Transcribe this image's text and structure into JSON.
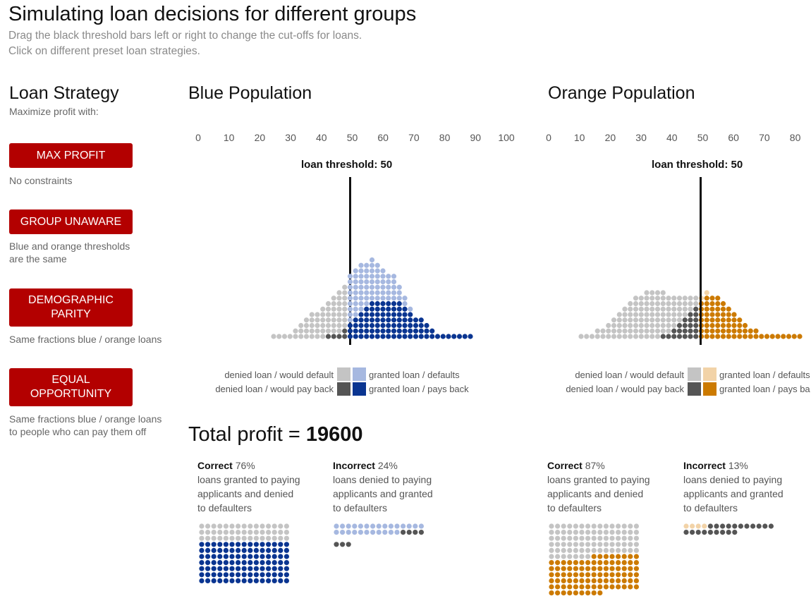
{
  "header": {
    "title": "Simulating loan decisions for different groups",
    "subtitle_1": "Drag the black threshold bars left or right to change the cut-offs for loans.",
    "subtitle_2": "Click on different preset loan strategies."
  },
  "strategy": {
    "title": "Loan Strategy",
    "subtitle": "Maximize profit with:",
    "buttons": [
      {
        "label_1": "MAX PROFIT",
        "label_2": "",
        "desc_1": "No constraints",
        "desc_2": ""
      },
      {
        "label_1": "GROUP UNAWARE",
        "label_2": "",
        "desc_1": "Blue and orange thresholds",
        "desc_2": "are the same"
      },
      {
        "label_1": "DEMOGRAPHIC",
        "label_2": "PARITY",
        "desc_1": "Same fractions blue / orange loans",
        "desc_2": ""
      },
      {
        "label_1": "EQUAL",
        "label_2": "OPPORTUNITY",
        "desc_1": "Same fractions blue / orange loans",
        "desc_2": "to people who can pay them off"
      }
    ]
  },
  "colors": {
    "accent": "#b30000",
    "denied_default": "#c4c4c4",
    "denied_payback": "#555555",
    "blue_granted_default": "#a6b8e0",
    "blue_granted_payback": "#0a3591",
    "orange_granted_default": "#f2d3a8",
    "orange_granted_payback": "#cc7a00"
  },
  "blue": {
    "title": "Blue Population",
    "ticks": [
      "0",
      "10",
      "20",
      "30",
      "40",
      "50",
      "60",
      "70",
      "80",
      "90",
      "100"
    ],
    "threshold_text": "loan threshold: 50",
    "threshold_value": 50,
    "legend": {
      "denied_default": "denied loan / would default",
      "denied_payback": "denied loan / would pay back",
      "granted_default": "granted loan / defaults",
      "granted_payback": "granted loan / pays back"
    },
    "correct_label": "Correct",
    "correct_pct": "76%",
    "correct_desc_1": "loans granted to paying",
    "correct_desc_2": "applicants and denied",
    "correct_desc_3": "to defaulters",
    "incorrect_label": "Incorrect",
    "incorrect_pct": "24%",
    "incorrect_desc_1": "loans denied to paying",
    "incorrect_desc_2": "applicants and granted",
    "incorrect_desc_3": "to defaulters"
  },
  "orange": {
    "title": "Orange Population",
    "ticks": [
      "0",
      "10",
      "20",
      "30",
      "40",
      "50",
      "60",
      "70",
      "80"
    ],
    "threshold_text": "loan threshold: 50",
    "threshold_value": 50,
    "legend": {
      "denied_default": "denied loan / would default",
      "denied_payback": "denied loan / would pay back",
      "granted_default": "granted loan / defaults",
      "granted_payback": "granted loan / pays ba"
    },
    "correct_label": "Correct",
    "correct_pct": "87%",
    "correct_desc_1": "loans granted to paying",
    "correct_desc_2": "applicants and denied",
    "correct_desc_3": "to defaulters",
    "incorrect_label": "Incorrect",
    "incorrect_pct": "13%",
    "incorrect_desc_1": "loans denied to paying",
    "incorrect_desc_2": "applicants and granted",
    "incorrect_desc_3": "to defaulters"
  },
  "profit": {
    "label": "Total profit = ",
    "value": "19600"
  }
}
